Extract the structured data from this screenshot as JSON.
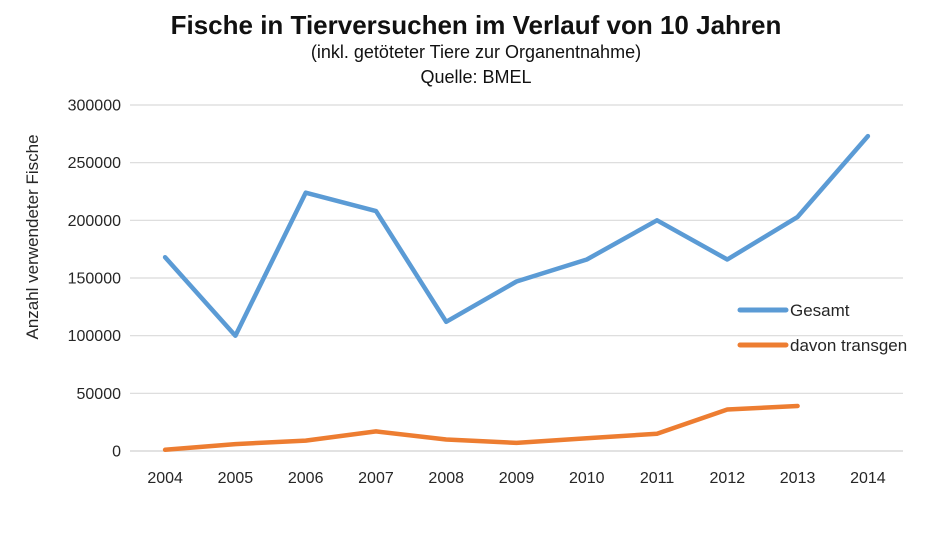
{
  "title": "Fische in Tierversuchen im Verlauf von 10 Jahren",
  "subtitle1": "(inkl. getöteter Tiere zur Organentnahme)",
  "subtitle2": "Quelle: BMEL",
  "chart_data": {
    "type": "line",
    "title": "Fische in Tierversuchen im Verlauf von 10 Jahren",
    "subtitle": "(inkl. getöteter Tiere zur Organentnahme) Quelle: BMEL",
    "categories": [
      "2004",
      "2005",
      "2006",
      "2007",
      "2008",
      "2009",
      "2010",
      "2011",
      "2012",
      "2013",
      "2014"
    ],
    "series": [
      {
        "name": "Gesamt",
        "color": "#5B9BD5",
        "values": [
          168000,
          100000,
          224000,
          208000,
          112000,
          147000,
          166000,
          200000,
          166000,
          203000,
          273000
        ]
      },
      {
        "name": "davon transgen",
        "color": "#ED7D31",
        "values": [
          1000,
          6000,
          9000,
          17000,
          10000,
          7000,
          11000,
          15000,
          36000,
          39000,
          null
        ]
      }
    ],
    "xlabel": "",
    "ylabel": "Anzahl verwendeter Fische",
    "ylim": [
      0,
      300000
    ],
    "ytick_step": 50000,
    "ytick_labels": [
      "0",
      "50000",
      "100000",
      "150000",
      "200000",
      "250000",
      "300000"
    ],
    "grid": true,
    "gridline_color": "#D9D9D9",
    "axis_text_color": "#262626",
    "legend_position": "right-middle",
    "legend": [
      "Gesamt",
      "davon transgen"
    ]
  }
}
